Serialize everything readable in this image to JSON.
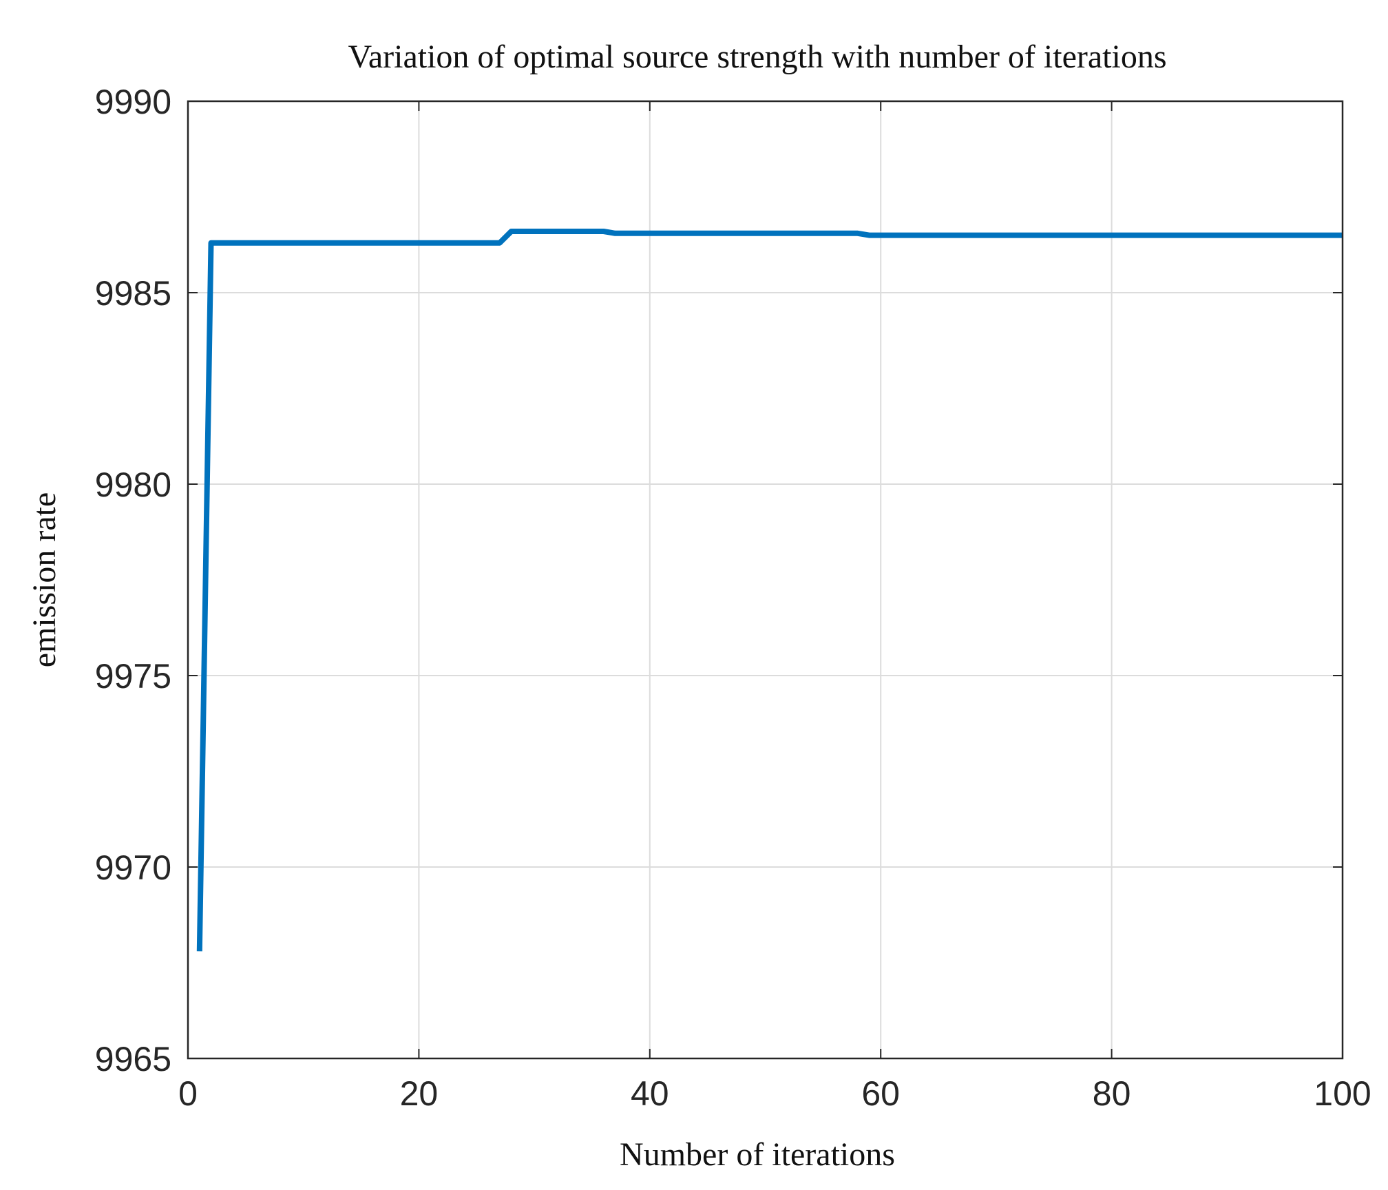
{
  "chart_data": {
    "type": "line",
    "title": "Variation of optimal source strength with number of iterations",
    "xlabel": "Number of iterations",
    "ylabel": "emission rate",
    "xlim": [
      0,
      100
    ],
    "ylim": [
      9965,
      9990
    ],
    "xticks": [
      0,
      20,
      40,
      60,
      80,
      100
    ],
    "yticks": [
      9965,
      9970,
      9975,
      9980,
      9985,
      9990
    ],
    "xtick_labels": [
      "0",
      "20",
      "40",
      "60",
      "80",
      "100"
    ],
    "ytick_labels": [
      "9965",
      "9970",
      "9975",
      "9980",
      "9985",
      "9990"
    ],
    "grid": true,
    "series": [
      {
        "color": "#0072BD",
        "x": [
          1,
          2,
          27,
          28,
          36,
          37,
          58,
          59,
          100
        ],
        "y": [
          9967.8,
          9986.3,
          9986.3,
          9986.6,
          9986.6,
          9986.55,
          9986.55,
          9986.5,
          9986.5
        ]
      }
    ]
  }
}
